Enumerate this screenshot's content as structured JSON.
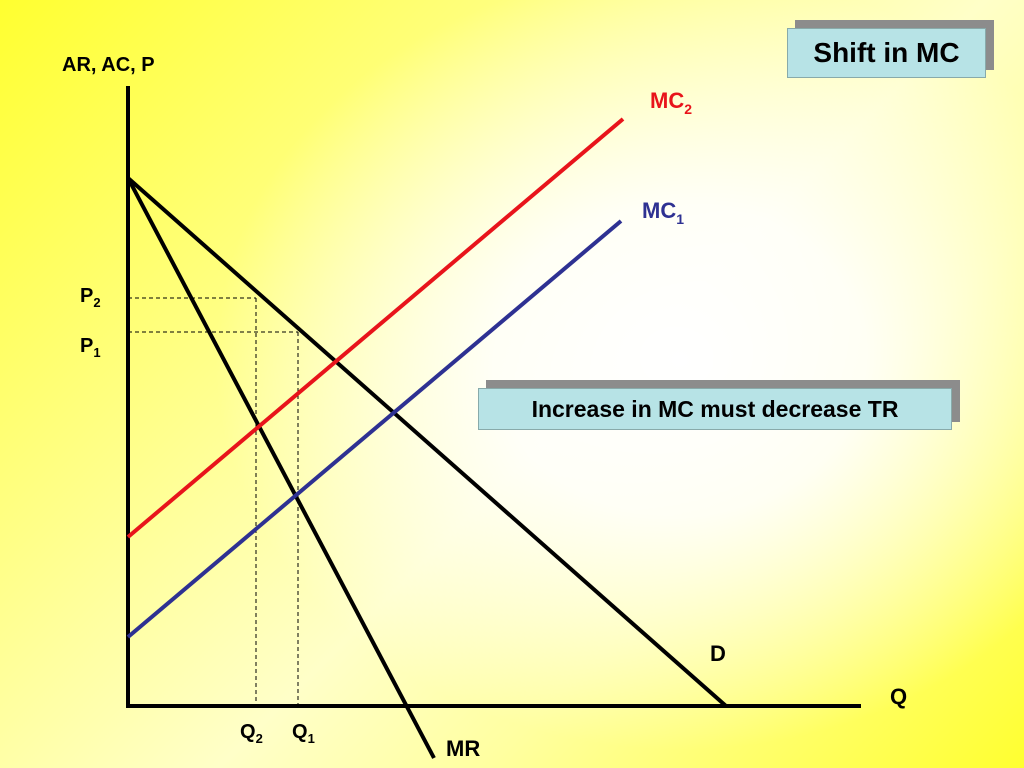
{
  "title": "Shift in MC",
  "note": "Increase in MC must decrease TR",
  "axes": {
    "y_label": "AR, AC, P",
    "x_label": "Q"
  },
  "curves": {
    "mc2": {
      "base": "MC",
      "sub": "2",
      "color": "#e8141b"
    },
    "mc1": {
      "base": "MC",
      "sub": "1",
      "color": "#2e3192"
    },
    "demand": {
      "label": "D",
      "color": "#000000"
    },
    "mr": {
      "label": "MR",
      "color": "#000000"
    }
  },
  "prices": {
    "p2": {
      "base": "P",
      "sub": "2"
    },
    "p1": {
      "base": "P",
      "sub": "1"
    }
  },
  "quantities": {
    "q2": {
      "base": "Q",
      "sub": "2"
    },
    "q1": {
      "base": "Q",
      "sub": "1"
    }
  }
}
